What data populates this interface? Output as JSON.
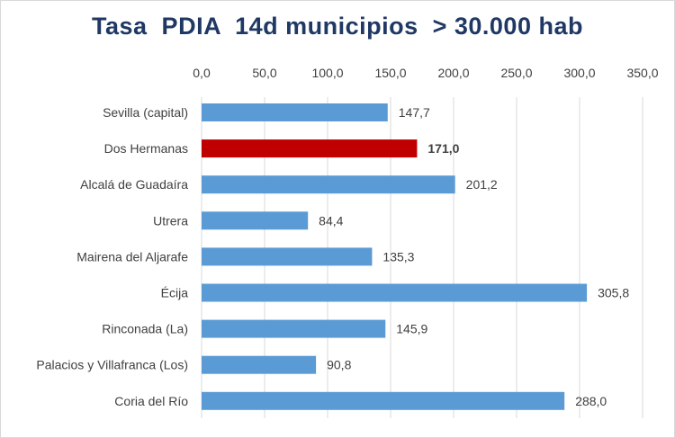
{
  "chart_data": {
    "type": "bar",
    "orientation": "horizontal",
    "title": "Tasa  PDIA  14d municipios  > 30.000 hab",
    "categories": [
      "Sevilla (capital)",
      "Dos Hermanas",
      "Alcalá de Guadaíra",
      "Utrera",
      "Mairena del Aljarafe",
      "Écija",
      "Rinconada (La)",
      "Palacios y Villafranca (Los)",
      "Coria del Río"
    ],
    "values": [
      147.7,
      171.0,
      201.2,
      84.4,
      135.3,
      305.8,
      145.9,
      90.8,
      288.0
    ],
    "data_labels": [
      "147,7",
      "171,0",
      "201,2",
      "84,4",
      "135,3",
      "305,8",
      "145,9",
      "90,8",
      "288,0"
    ],
    "highlight_index": 1,
    "x_axis_position": "top",
    "xlim": [
      0,
      350
    ],
    "x_ticks": [
      0,
      50,
      100,
      150,
      200,
      250,
      300,
      350
    ],
    "x_tick_labels": [
      "0,0",
      "50,0",
      "100,0",
      "150,0",
      "200,0",
      "250,0",
      "300,0",
      "350,0"
    ],
    "grid": true,
    "legend": "none",
    "colors": {
      "bar": "#5b9bd5",
      "highlight": "#c00000",
      "gridline": "#d9d9d9",
      "title": "#1f3864",
      "text": "#404040"
    }
  }
}
